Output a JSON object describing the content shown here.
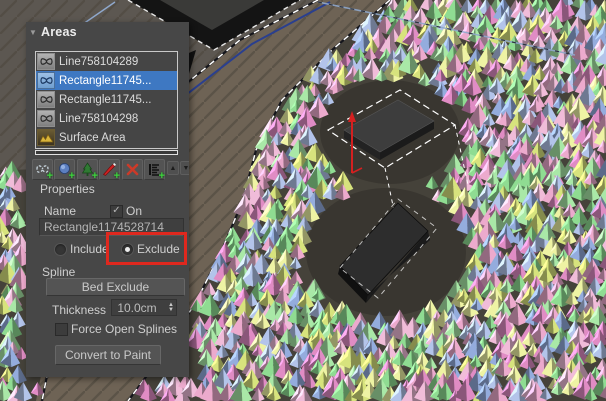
{
  "panel": {
    "title": "Areas",
    "collapse_glyph": "▼",
    "list": {
      "items": [
        {
          "label": "Line758104289",
          "icon": "spline-area",
          "selected": false
        },
        {
          "label": "Rectangle11745...",
          "icon": "spline-area",
          "selected": true
        },
        {
          "label": "Rectangle11745...",
          "icon": "spline-area",
          "selected": false
        },
        {
          "label": "Line758104298",
          "icon": "spline-area",
          "selected": false
        },
        {
          "label": "Surface Area",
          "icon": "surface-area",
          "selected": false
        }
      ]
    },
    "toolbar": {
      "buttons": [
        "add-spline-area",
        "add-object-area",
        "add-forest-area",
        "add-paint-area",
        "delete-area",
        "add-reference-area"
      ],
      "up_glyph": "▲",
      "down_glyph": "▼"
    },
    "properties": {
      "section_label": "Properties",
      "name_label": "Name",
      "on_label": "On",
      "on_checked": true,
      "on_check_glyph": "✓",
      "name_value": "Rectangle1174528714",
      "include_label": "Include",
      "exclude_label": "Exclude",
      "mode": "exclude",
      "spline_label": "Spline",
      "spline_button_label": "Bed Exclude",
      "thickness_label": "Thickness",
      "thickness_value": "10.0cm",
      "spinner_up_glyph": "▲",
      "spinner_down_glyph": "▼",
      "force_open_label": "Force Open Splines",
      "force_open_checked": false,
      "convert_button_label": "Convert to Paint"
    },
    "colors": {
      "panel_bg": "#474747",
      "selection_blue": "#3e78c2",
      "highlight_red": "#df281e",
      "plus_green": "#3ed43e"
    }
  },
  "viewport": {
    "scatter_palette": [
      "#ecaacd",
      "#e08cc4",
      "#f0bcd9",
      "#8fdc92",
      "#a9e8a7",
      "#d7e37d",
      "#eef3a4",
      "#94acdd",
      "#b3c4ea"
    ],
    "bg_color": "#45423a",
    "ground_color": "#6e6355",
    "deck_color": "#5c5751",
    "plank_color": "#4c453c",
    "cleared_color": "#393630",
    "box_top_color": "#3d3d3d",
    "box_side_color": "#1b1b1b",
    "spline_white": "#ffffff",
    "spline_dark": "#15161c",
    "spline_blue": "#2a3f8f",
    "spline_lightblue": "#8fa8cc",
    "roof_color": "#141414",
    "axis_red": "#d42020"
  }
}
